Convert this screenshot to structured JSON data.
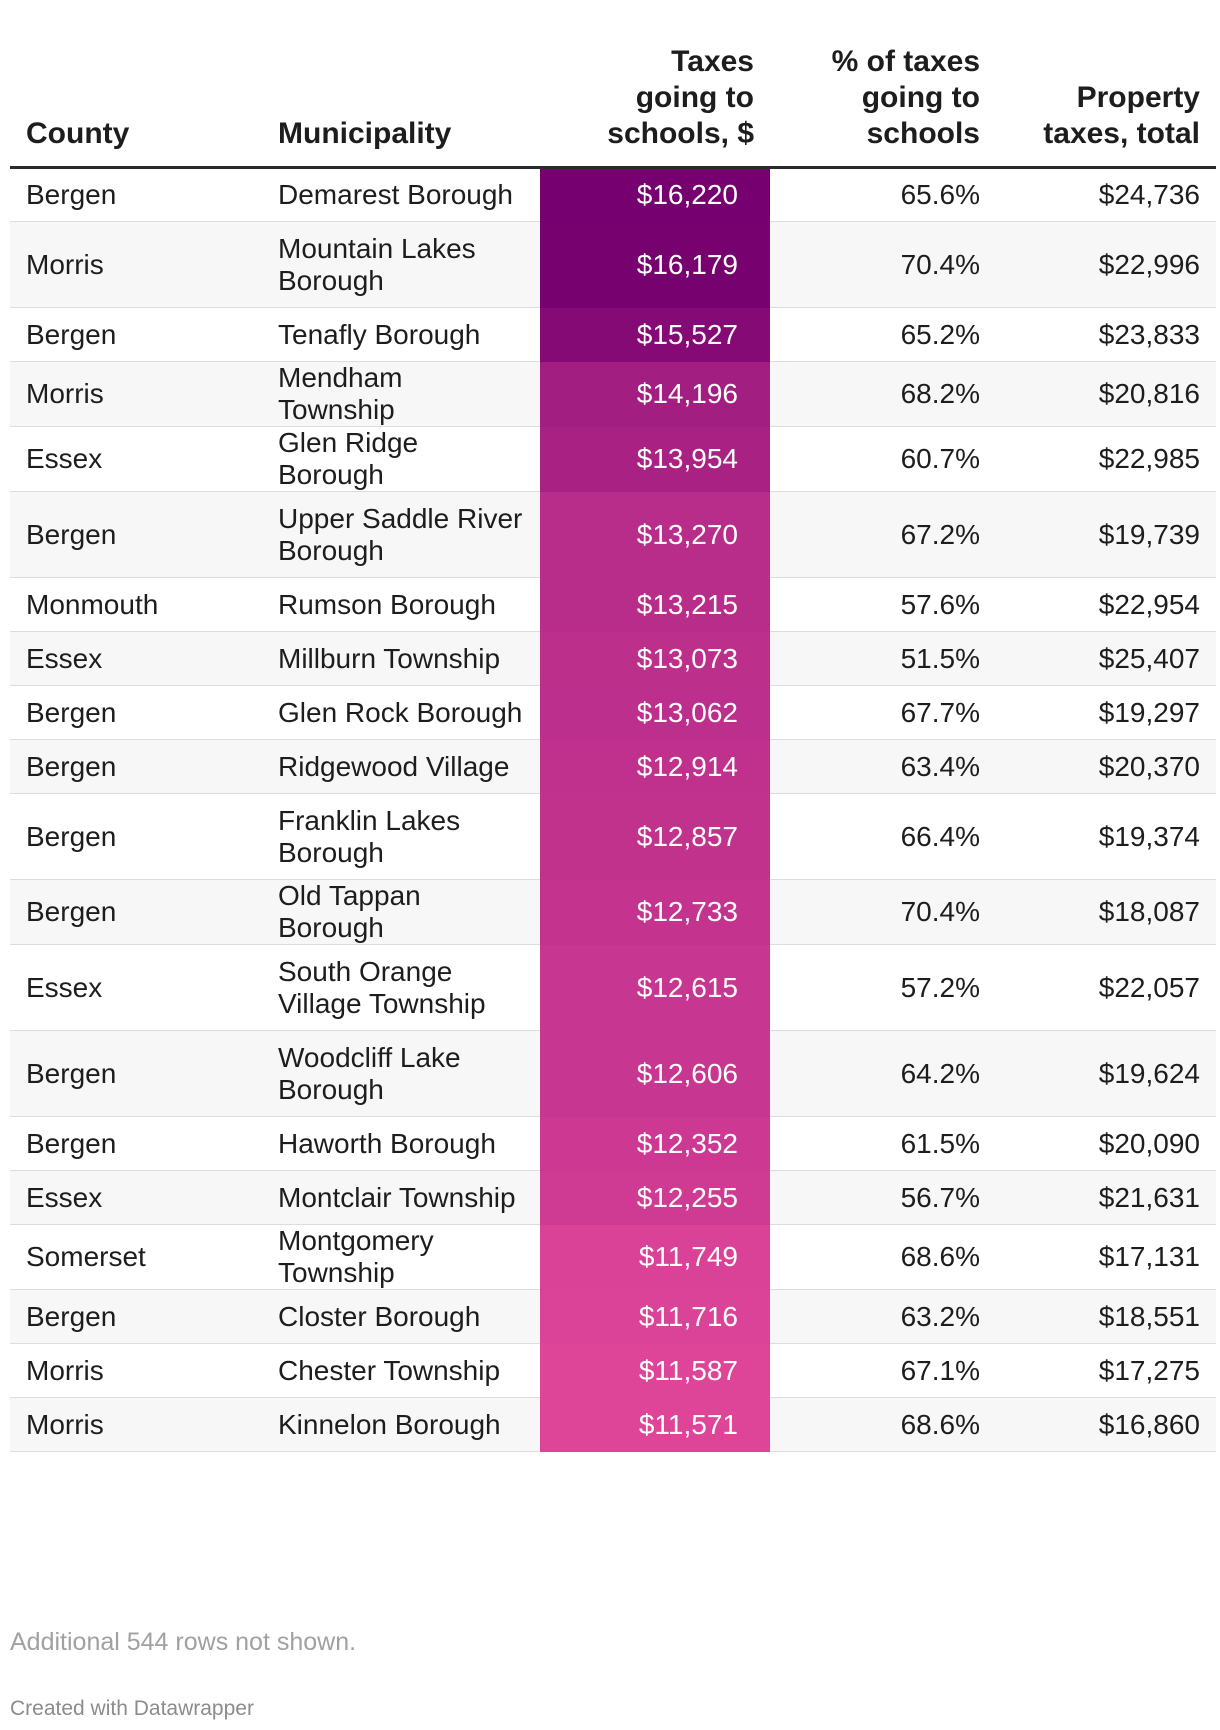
{
  "chart_data": {
    "type": "table",
    "columns": [
      "County",
      "Municipality",
      "Taxes going to schools, $",
      "% of taxes going to schools",
      "Property taxes, total"
    ],
    "header_lines": [
      [
        "County"
      ],
      [
        "Municipality"
      ],
      [
        "Taxes",
        "going to",
        "schools, $"
      ],
      [
        "% of taxes",
        "going to",
        "schools"
      ],
      [
        "Property",
        "taxes, total"
      ]
    ],
    "rows": [
      {
        "county": "Bergen",
        "municipality": "Demarest Borough",
        "school_taxes": "$16,220",
        "school_taxes_value": 16220,
        "pct_schools": "65.6%",
        "total": "$24,736"
      },
      {
        "county": "Morris",
        "municipality": "Mountain Lakes Borough",
        "school_taxes": "$16,179",
        "school_taxes_value": 16179,
        "pct_schools": "70.4%",
        "total": "$22,996"
      },
      {
        "county": "Bergen",
        "municipality": "Tenafly Borough",
        "school_taxes": "$15,527",
        "school_taxes_value": 15527,
        "pct_schools": "65.2%",
        "total": "$23,833"
      },
      {
        "county": "Morris",
        "municipality": "Mendham Township",
        "school_taxes": "$14,196",
        "school_taxes_value": 14196,
        "pct_schools": "68.2%",
        "total": "$20,816"
      },
      {
        "county": "Essex",
        "municipality": "Glen Ridge Borough",
        "school_taxes": "$13,954",
        "school_taxes_value": 13954,
        "pct_schools": "60.7%",
        "total": "$22,985"
      },
      {
        "county": "Bergen",
        "municipality": "Upper Saddle River Borough",
        "school_taxes": "$13,270",
        "school_taxes_value": 13270,
        "pct_schools": "67.2%",
        "total": "$19,739"
      },
      {
        "county": "Monmouth",
        "municipality": "Rumson Borough",
        "school_taxes": "$13,215",
        "school_taxes_value": 13215,
        "pct_schools": "57.6%",
        "total": "$22,954"
      },
      {
        "county": "Essex",
        "municipality": "Millburn Township",
        "school_taxes": "$13,073",
        "school_taxes_value": 13073,
        "pct_schools": "51.5%",
        "total": "$25,407"
      },
      {
        "county": "Bergen",
        "municipality": "Glen Rock Borough",
        "school_taxes": "$13,062",
        "school_taxes_value": 13062,
        "pct_schools": "67.7%",
        "total": "$19,297"
      },
      {
        "county": "Bergen",
        "municipality": "Ridgewood Village",
        "school_taxes": "$12,914",
        "school_taxes_value": 12914,
        "pct_schools": "63.4%",
        "total": "$20,370"
      },
      {
        "county": "Bergen",
        "municipality": "Franklin Lakes Borough",
        "school_taxes": "$12,857",
        "school_taxes_value": 12857,
        "pct_schools": "66.4%",
        "total": "$19,374"
      },
      {
        "county": "Bergen",
        "municipality": "Old Tappan Borough",
        "school_taxes": "$12,733",
        "school_taxes_value": 12733,
        "pct_schools": "70.4%",
        "total": "$18,087"
      },
      {
        "county": "Essex",
        "municipality": "South Orange Village Township",
        "school_taxes": "$12,615",
        "school_taxes_value": 12615,
        "pct_schools": "57.2%",
        "total": "$22,057"
      },
      {
        "county": "Bergen",
        "municipality": "Woodcliff Lake Borough",
        "school_taxes": "$12,606",
        "school_taxes_value": 12606,
        "pct_schools": "64.2%",
        "total": "$19,624"
      },
      {
        "county": "Bergen",
        "municipality": "Haworth Borough",
        "school_taxes": "$12,352",
        "school_taxes_value": 12352,
        "pct_schools": "61.5%",
        "total": "$20,090"
      },
      {
        "county": "Essex",
        "municipality": "Montclair Township",
        "school_taxes": "$12,255",
        "school_taxes_value": 12255,
        "pct_schools": "56.7%",
        "total": "$21,631"
      },
      {
        "county": "Somerset",
        "municipality": "Montgomery Township",
        "school_taxes": "$11,749",
        "school_taxes_value": 11749,
        "pct_schools": "68.6%",
        "total": "$17,131"
      },
      {
        "county": "Bergen",
        "municipality": "Closter Borough",
        "school_taxes": "$11,716",
        "school_taxes_value": 11716,
        "pct_schools": "63.2%",
        "total": "$18,551"
      },
      {
        "county": "Morris",
        "municipality": "Chester Township",
        "school_taxes": "$11,587",
        "school_taxes_value": 11587,
        "pct_schools": "67.1%",
        "total": "$17,275"
      },
      {
        "county": "Morris",
        "municipality": "Kinnelon Borough",
        "school_taxes": "$11,571",
        "school_taxes_value": 11571,
        "pct_schools": "68.6%",
        "total": "$16,860"
      }
    ],
    "heatmap": {
      "column": "Taxes going to schools, $",
      "low_value": 11571,
      "high_value": 16220,
      "low_color": "#de4599",
      "high_color": "#76006f"
    }
  },
  "footer": {
    "note": "Additional 544 rows not shown.",
    "credit": "Created with Datawrapper"
  }
}
